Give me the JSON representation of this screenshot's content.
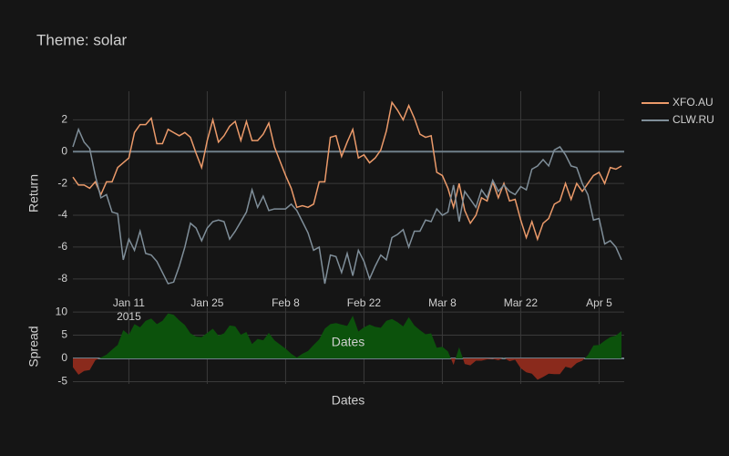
{
  "chart_data": [
    {
      "type": "line",
      "title": "Theme: solar",
      "ylabel": "Return",
      "xlabel": "Dates",
      "x": [
        "2015-01-01",
        "2015-01-02",
        "2015-01-03",
        "2015-01-04",
        "2015-01-05",
        "2015-01-06",
        "2015-01-07",
        "2015-01-08",
        "2015-01-09",
        "2015-01-10",
        "2015-01-11",
        "2015-01-12",
        "2015-01-13",
        "2015-01-14",
        "2015-01-15",
        "2015-01-16",
        "2015-01-17",
        "2015-01-18",
        "2015-01-19",
        "2015-01-20",
        "2015-01-21",
        "2015-01-22",
        "2015-01-23",
        "2015-01-24",
        "2015-01-25",
        "2015-01-26",
        "2015-01-27",
        "2015-01-28",
        "2015-01-29",
        "2015-01-30",
        "2015-01-31",
        "2015-02-01",
        "2015-02-02",
        "2015-02-03",
        "2015-02-04",
        "2015-02-05",
        "2015-02-06",
        "2015-02-07",
        "2015-02-08",
        "2015-02-09",
        "2015-02-10",
        "2015-02-11",
        "2015-02-12",
        "2015-02-13",
        "2015-02-14",
        "2015-02-15",
        "2015-02-16",
        "2015-02-17",
        "2015-02-18",
        "2015-02-19",
        "2015-02-20",
        "2015-02-21",
        "2015-02-22",
        "2015-02-23",
        "2015-02-24",
        "2015-02-25",
        "2015-02-26",
        "2015-02-27",
        "2015-02-28",
        "2015-03-01",
        "2015-03-02",
        "2015-03-03",
        "2015-03-04",
        "2015-03-05",
        "2015-03-06",
        "2015-03-07",
        "2015-03-08",
        "2015-03-09",
        "2015-03-10",
        "2015-03-11",
        "2015-03-12",
        "2015-03-13",
        "2015-03-14",
        "2015-03-15",
        "2015-03-16",
        "2015-03-17",
        "2015-03-18",
        "2015-03-19",
        "2015-03-20",
        "2015-03-21",
        "2015-03-22",
        "2015-03-23",
        "2015-03-24",
        "2015-03-25",
        "2015-03-26",
        "2015-03-27",
        "2015-03-28",
        "2015-03-29",
        "2015-03-30",
        "2015-03-31",
        "2015-04-01",
        "2015-04-02",
        "2015-04-03",
        "2015-04-04",
        "2015-04-05",
        "2015-04-06",
        "2015-04-07",
        "2015-04-08",
        "2015-04-09"
      ],
      "series": [
        {
          "name": "XFO.AU",
          "color": "#eb9a6a",
          "values": [
            -1.6,
            -2.1,
            -2.1,
            -2.3,
            -1.9,
            -2.7,
            -1.9,
            -1.9,
            -1.0,
            -0.7,
            -0.4,
            1.2,
            1.7,
            1.7,
            2.1,
            0.5,
            0.5,
            1.4,
            1.2,
            1.0,
            1.2,
            0.9,
            -0.1,
            -1.0,
            0.7,
            2.0,
            0.6,
            1.0,
            1.6,
            1.9,
            0.7,
            1.9,
            0.7,
            0.7,
            1.1,
            1.8,
            0.3,
            -0.6,
            -1.5,
            -2.3,
            -3.5,
            -3.4,
            -3.5,
            -3.3,
            -1.9,
            -1.9,
            0.9,
            1.0,
            -0.3,
            0.6,
            1.4,
            -0.4,
            -0.2,
            -0.7,
            -0.4,
            0.1,
            1.3,
            3.1,
            2.6,
            2.0,
            2.9,
            2.1,
            1.1,
            0.9,
            1.0,
            -1.3,
            -1.5,
            -2.3,
            -3.5,
            -2.0,
            -3.7,
            -4.5,
            -4.0,
            -2.9,
            -3.1,
            -1.9,
            -2.9,
            -2.0,
            -3.1,
            -3.0,
            -4.3,
            -5.4,
            -4.4,
            -5.5,
            -4.5,
            -4.2,
            -3.3,
            -3.1,
            -2.0,
            -3.0,
            -2.0,
            -2.5,
            -2.0,
            -1.5,
            -1.3,
            -2.0,
            -1.0,
            -1.1,
            -0.9
          ]
        },
        {
          "name": "CLW.RU",
          "color": "#7f8e99",
          "values": [
            0.3,
            1.4,
            0.6,
            0.2,
            -1.5,
            -2.9,
            -2.7,
            -3.8,
            -3.9,
            -6.8,
            -5.5,
            -6.2,
            -5.0,
            -6.4,
            -6.5,
            -6.9,
            -7.6,
            -8.3,
            -8.2,
            -7.2,
            -6.0,
            -4.5,
            -4.8,
            -5.6,
            -4.8,
            -4.4,
            -4.3,
            -4.4,
            -5.5,
            -5.0,
            -4.4,
            -3.8,
            -2.4,
            -3.5,
            -2.8,
            -3.7,
            -3.6,
            -3.6,
            -3.6,
            -3.3,
            -3.7,
            -4.4,
            -5.1,
            -6.2,
            -6.0,
            -8.3,
            -6.5,
            -6.6,
            -7.6,
            -6.4,
            -7.8,
            -6.2,
            -6.9,
            -8.0,
            -7.2,
            -6.5,
            -6.8,
            -5.4,
            -5.2,
            -4.9,
            -6.0,
            -5.0,
            -5.0,
            -4.3,
            -4.4,
            -3.6,
            -4.0,
            -3.8,
            -2.1,
            -4.4,
            -2.5,
            -3.0,
            -3.5,
            -2.4,
            -2.9,
            -1.8,
            -2.5,
            -2.1,
            -2.5,
            -2.7,
            -2.2,
            -2.4,
            -1.1,
            -0.9,
            -0.5,
            -0.9,
            0.1,
            0.3,
            -0.2,
            -0.9,
            -1.0,
            -2.0,
            -2.7,
            -4.3,
            -4.2,
            -5.8,
            -5.6,
            -6.0,
            -6.8
          ]
        }
      ],
      "xlim": [
        "2015-01-01",
        "2015-04-09"
      ],
      "xticks": [
        {
          "value": "2015-01-11",
          "label": "Jan 11\n2015"
        },
        {
          "value": "2015-01-25",
          "label": "Jan 25"
        },
        {
          "value": "2015-02-08",
          "label": "Feb 8"
        },
        {
          "value": "2015-02-22",
          "label": "Feb 22"
        },
        {
          "value": "2015-03-08",
          "label": "Mar 8"
        },
        {
          "value": "2015-03-22",
          "label": "Mar 22"
        },
        {
          "value": "2015-04-05",
          "label": "Apr 5"
        }
      ],
      "ylim": [
        -9.1,
        3.8
      ],
      "yticks": [
        -8,
        -6,
        -4,
        -2,
        0,
        2
      ],
      "grid": true,
      "legend": "right"
    },
    {
      "type": "area",
      "ylabel": "Spread",
      "xlabel": "Dates",
      "positive_color": "#0c520c",
      "negative_color": "#8a2a1c",
      "x": [
        "2015-01-01",
        "2015-01-02",
        "2015-01-03",
        "2015-01-04",
        "2015-01-05",
        "2015-01-06",
        "2015-01-07",
        "2015-01-08",
        "2015-01-09",
        "2015-01-10",
        "2015-01-11",
        "2015-01-12",
        "2015-01-13",
        "2015-01-14",
        "2015-01-15",
        "2015-01-16",
        "2015-01-17",
        "2015-01-18",
        "2015-01-19",
        "2015-01-20",
        "2015-01-21",
        "2015-01-22",
        "2015-01-23",
        "2015-01-24",
        "2015-01-25",
        "2015-01-26",
        "2015-01-27",
        "2015-01-28",
        "2015-01-29",
        "2015-01-30",
        "2015-01-31",
        "2015-02-01",
        "2015-02-02",
        "2015-02-03",
        "2015-02-04",
        "2015-02-05",
        "2015-02-06",
        "2015-02-07",
        "2015-02-08",
        "2015-02-09",
        "2015-02-10",
        "2015-02-11",
        "2015-02-12",
        "2015-02-13",
        "2015-02-14",
        "2015-02-15",
        "2015-02-16",
        "2015-02-17",
        "2015-02-18",
        "2015-02-19",
        "2015-02-20",
        "2015-02-21",
        "2015-02-22",
        "2015-02-23",
        "2015-02-24",
        "2015-02-25",
        "2015-02-26",
        "2015-02-27",
        "2015-02-28",
        "2015-03-01",
        "2015-03-02",
        "2015-03-03",
        "2015-03-04",
        "2015-03-05",
        "2015-03-06",
        "2015-03-07",
        "2015-03-08",
        "2015-03-09",
        "2015-03-10",
        "2015-03-11",
        "2015-03-12",
        "2015-03-13",
        "2015-03-14",
        "2015-03-15",
        "2015-03-16",
        "2015-03-17",
        "2015-03-18",
        "2015-03-19",
        "2015-03-20",
        "2015-03-21",
        "2015-03-22",
        "2015-03-23",
        "2015-03-24",
        "2015-03-25",
        "2015-03-26",
        "2015-03-27",
        "2015-03-28",
        "2015-03-29",
        "2015-03-30",
        "2015-03-31",
        "2015-04-01",
        "2015-04-02",
        "2015-04-03",
        "2015-04-04",
        "2015-04-05",
        "2015-04-06",
        "2015-04-07",
        "2015-04-08",
        "2015-04-09"
      ],
      "values": [
        -1.9,
        -3.5,
        -2.7,
        -2.5,
        -0.4,
        0.2,
        0.8,
        1.9,
        2.9,
        6.1,
        5.1,
        7.4,
        6.7,
        8.1,
        8.6,
        7.4,
        8.1,
        9.7,
        9.4,
        8.2,
        7.2,
        5.4,
        4.7,
        4.6,
        5.5,
        6.4,
        4.9,
        5.4,
        7.1,
        6.9,
        5.1,
        5.7,
        3.1,
        4.2,
        3.9,
        5.5,
        3.9,
        3.0,
        2.1,
        1.0,
        0.2,
        1.0,
        1.6,
        2.9,
        4.1,
        6.4,
        7.4,
        7.6,
        7.3,
        7.0,
        9.2,
        5.8,
        6.7,
        7.3,
        6.8,
        6.6,
        8.1,
        8.5,
        7.8,
        6.9,
        8.9,
        7.1,
        6.1,
        5.2,
        5.4,
        2.3,
        2.5,
        1.5,
        -1.4,
        2.4,
        -1.2,
        -1.5,
        -0.5,
        -0.5,
        -0.2,
        -0.1,
        -0.4,
        0.1,
        -0.6,
        -0.3,
        -2.1,
        -3.0,
        -3.3,
        -4.6,
        -4.0,
        -3.3,
        -3.4,
        -3.4,
        -1.8,
        -2.1,
        -1.0,
        -0.5,
        0.7,
        2.8,
        2.9,
        3.8,
        4.6,
        4.9,
        5.9
      ],
      "xlim": [
        "2015-01-01",
        "2015-04-09"
      ],
      "ylim": [
        -5.5,
        11
      ],
      "yticks": [
        -5,
        0,
        5,
        10
      ],
      "grid": true
    }
  ]
}
